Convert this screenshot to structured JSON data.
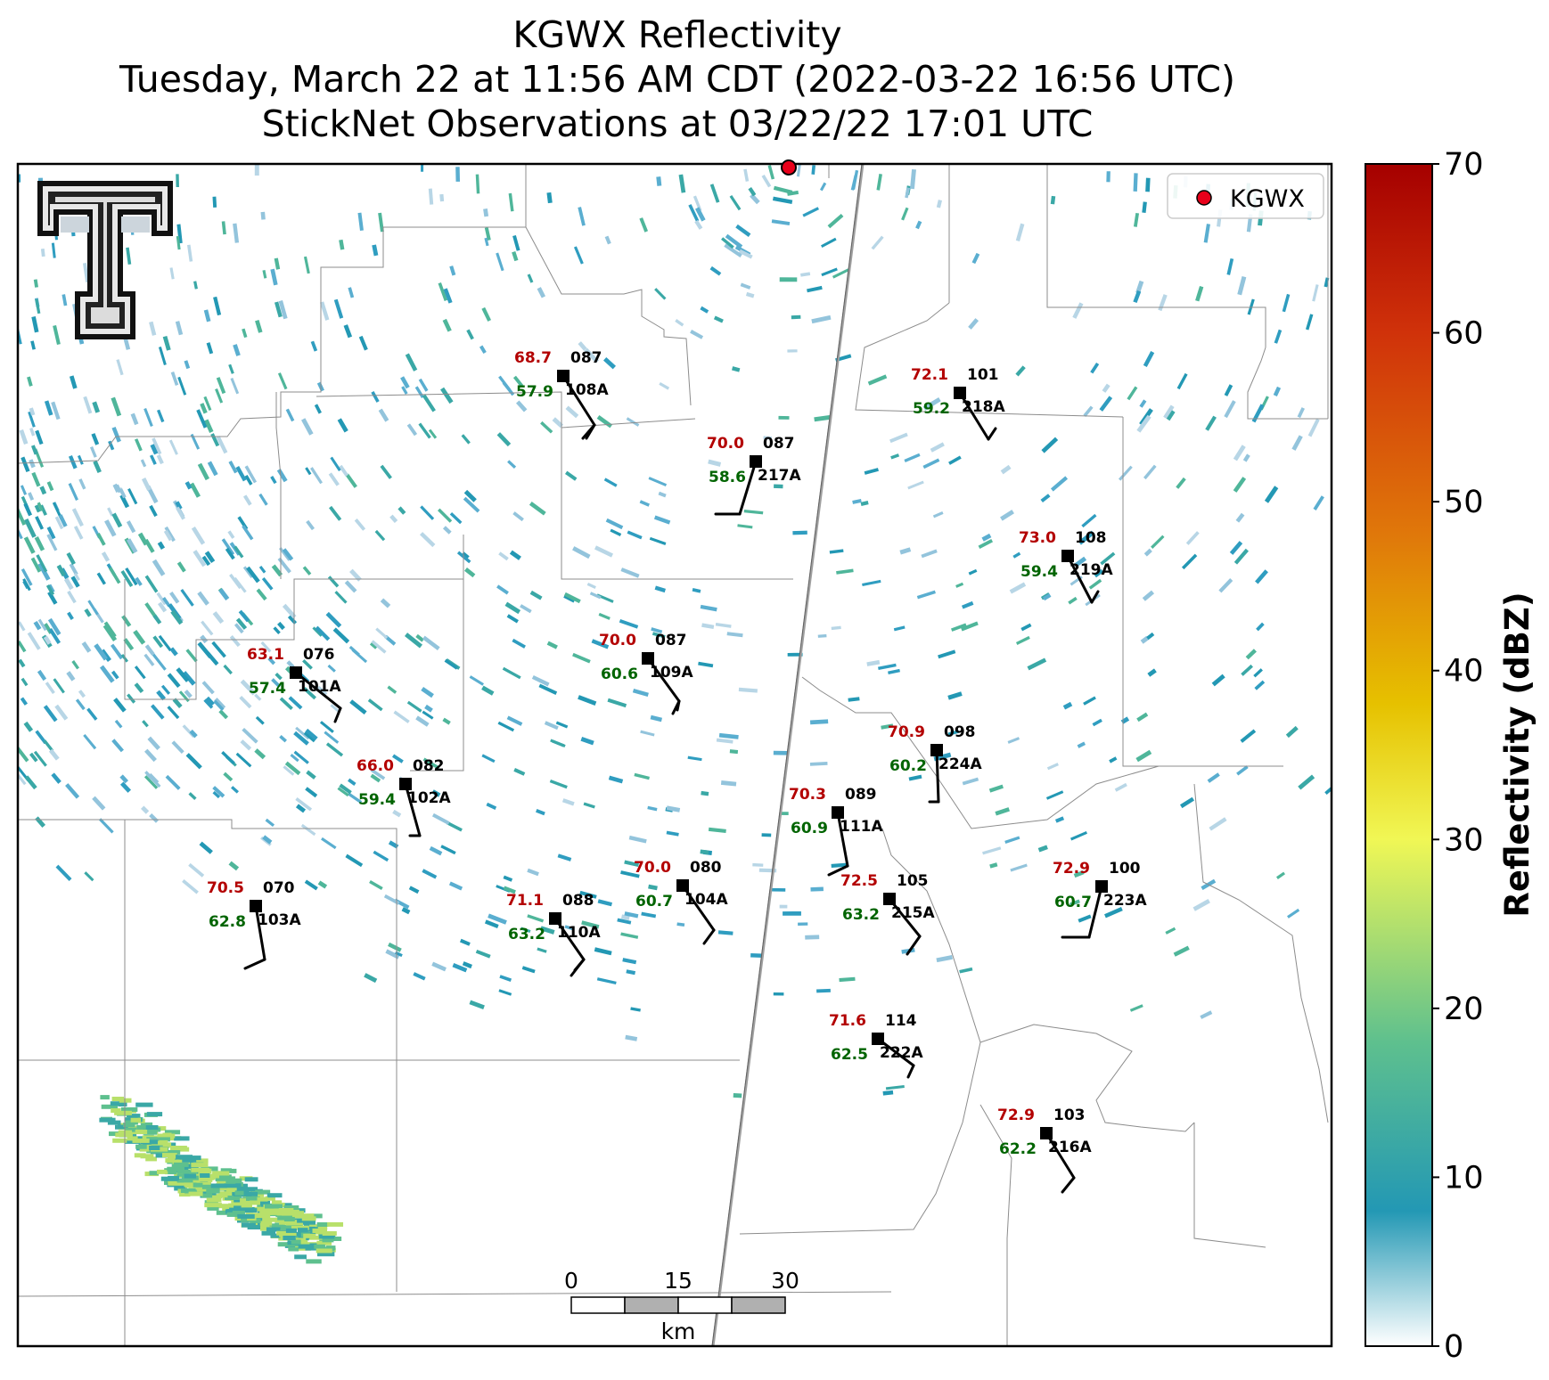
{
  "title": {
    "line1": "KGWX Reflectivity",
    "line2": "Tuesday, March 22 at 11:56 AM CDT (2022-03-22 16:56 UTC)",
    "line3": "StickNet Observations at 03/22/22 17:01 UTC"
  },
  "legend": {
    "label": "KGWX",
    "color": "#e8001a"
  },
  "logo": {
    "icon": "texas-tech-double-t-logo-icon"
  },
  "colorbar": {
    "label": "Reflectivity (dBZ)",
    "ticks": [
      "0",
      "10",
      "20",
      "30",
      "40",
      "50",
      "60",
      "70"
    ],
    "min": 0,
    "max": 70,
    "stops": [
      {
        "v": 0,
        "c": "#ffffff"
      },
      {
        "v": 8,
        "c": "#2398b4"
      },
      {
        "v": 18,
        "c": "#5ec08e"
      },
      {
        "v": 30,
        "c": "#f0f755"
      },
      {
        "v": 38,
        "c": "#e6c100"
      },
      {
        "v": 48,
        "c": "#e0780a"
      },
      {
        "v": 60,
        "c": "#d0320a"
      },
      {
        "v": 70,
        "c": "#a50000"
      }
    ]
  },
  "scalebar": {
    "ticks": [
      "0",
      "15",
      "30"
    ],
    "unit": "km"
  },
  "colors": {
    "temp": "#b30000",
    "dew": "#006400",
    "text": "#000000"
  },
  "stations": [
    {
      "id": "108A",
      "temp": "68.7",
      "dew": "57.9",
      "dir": "087"
    },
    {
      "id": "218A",
      "temp": "72.1",
      "dew": "59.2",
      "dir": "101"
    },
    {
      "id": "217A",
      "temp": "70.0",
      "dew": "58.6",
      "dir": "087"
    },
    {
      "id": "219A",
      "temp": "73.0",
      "dew": "59.4",
      "dir": "108"
    },
    {
      "id": "109A",
      "temp": "70.0",
      "dew": "60.6",
      "dir": "087"
    },
    {
      "id": "101A",
      "temp": "63.1",
      "dew": "57.4",
      "dir": "076"
    },
    {
      "id": "224A",
      "temp": "70.9",
      "dew": "60.2",
      "dir": "098"
    },
    {
      "id": "102A",
      "temp": "66.0",
      "dew": "59.4",
      "dir": "082"
    },
    {
      "id": "111A",
      "temp": "70.3",
      "dew": "60.9",
      "dir": "089"
    },
    {
      "id": "215A",
      "temp": "72.5",
      "dew": "63.2",
      "dir": "105"
    },
    {
      "id": "104A",
      "temp": "70.0",
      "dew": "60.7",
      "dir": "080"
    },
    {
      "id": "223A",
      "temp": "72.9",
      "dew": "60.7",
      "dir": "100"
    },
    {
      "id": "103A",
      "temp": "70.5",
      "dew": "62.8",
      "dir": "070"
    },
    {
      "id": "110A",
      "temp": "71.1",
      "dew": "63.2",
      "dir": "088"
    },
    {
      "id": "222A",
      "temp": "71.6",
      "dew": "62.5",
      "dir": "114"
    },
    {
      "id": "216A",
      "temp": "72.9",
      "dew": "62.2",
      "dir": "103"
    }
  ]
}
